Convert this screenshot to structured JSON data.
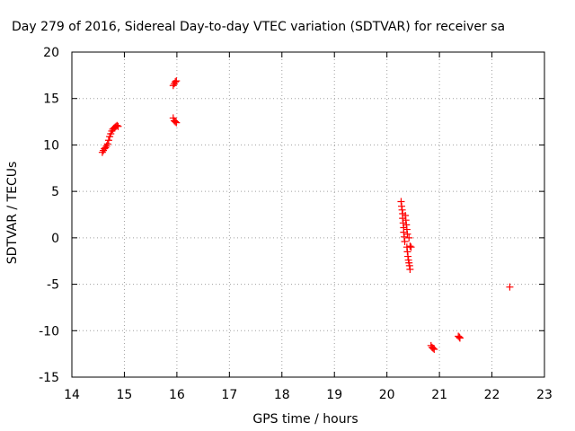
{
  "chart_data": {
    "type": "scatter",
    "title": "Day 279 of 2016, Sidereal Day-to-day VTEC variation (SDTVAR) for receiver sa",
    "xlabel": "GPS time / hours",
    "ylabel": "SDTVAR / TECUs",
    "xlim": [
      14,
      23
    ],
    "ylim": [
      -15,
      20
    ],
    "xticks": [
      14,
      15,
      16,
      17,
      18,
      19,
      20,
      21,
      22,
      23
    ],
    "yticks": [
      20,
      15,
      10,
      5,
      0,
      -5,
      -10,
      -15
    ],
    "grid": true,
    "marker": "+",
    "color": "#ff0000",
    "series": [
      {
        "name": "SDTVAR",
        "points": [
          [
            14.58,
            9.2
          ],
          [
            14.6,
            9.4
          ],
          [
            14.62,
            9.6
          ],
          [
            14.64,
            9.7
          ],
          [
            14.66,
            9.9
          ],
          [
            14.68,
            10.1
          ],
          [
            14.7,
            10.5
          ],
          [
            14.72,
            10.9
          ],
          [
            14.74,
            11.2
          ],
          [
            14.76,
            11.5
          ],
          [
            14.78,
            11.7
          ],
          [
            14.8,
            11.8
          ],
          [
            14.82,
            11.9
          ],
          [
            14.84,
            12.0
          ],
          [
            14.86,
            12.1
          ],
          [
            14.88,
            12.0
          ],
          [
            15.93,
            16.4
          ],
          [
            15.95,
            16.6
          ],
          [
            15.97,
            16.8
          ],
          [
            15.99,
            16.9
          ],
          [
            15.93,
            12.9
          ],
          [
            15.95,
            12.6
          ],
          [
            15.97,
            12.5
          ],
          [
            15.99,
            12.4
          ],
          [
            20.27,
            3.9
          ],
          [
            20.28,
            3.4
          ],
          [
            20.29,
            3.0
          ],
          [
            20.3,
            2.6
          ],
          [
            20.3,
            2.1
          ],
          [
            20.31,
            1.6
          ],
          [
            20.32,
            1.1
          ],
          [
            20.32,
            0.6
          ],
          [
            20.33,
            0.1
          ],
          [
            20.34,
            -0.4
          ],
          [
            20.35,
            2.4
          ],
          [
            20.36,
            1.9
          ],
          [
            20.37,
            1.4
          ],
          [
            20.38,
            0.9
          ],
          [
            20.39,
            0.4
          ],
          [
            20.38,
            -1.0
          ],
          [
            20.39,
            -1.5
          ],
          [
            20.4,
            -2.0
          ],
          [
            20.41,
            -2.4
          ],
          [
            20.42,
            -2.7
          ],
          [
            20.43,
            -3.0
          ],
          [
            20.44,
            -3.4
          ],
          [
            20.44,
            -0.9
          ],
          [
            20.46,
            -1.0
          ],
          [
            20.42,
            0.0
          ],
          [
            20.84,
            -11.6
          ],
          [
            20.86,
            -11.8
          ],
          [
            20.88,
            -11.9
          ],
          [
            20.9,
            -12.0
          ],
          [
            21.36,
            -10.6
          ],
          [
            21.38,
            -10.7
          ],
          [
            21.39,
            -10.8
          ],
          [
            22.34,
            -5.3
          ]
        ]
      }
    ]
  }
}
